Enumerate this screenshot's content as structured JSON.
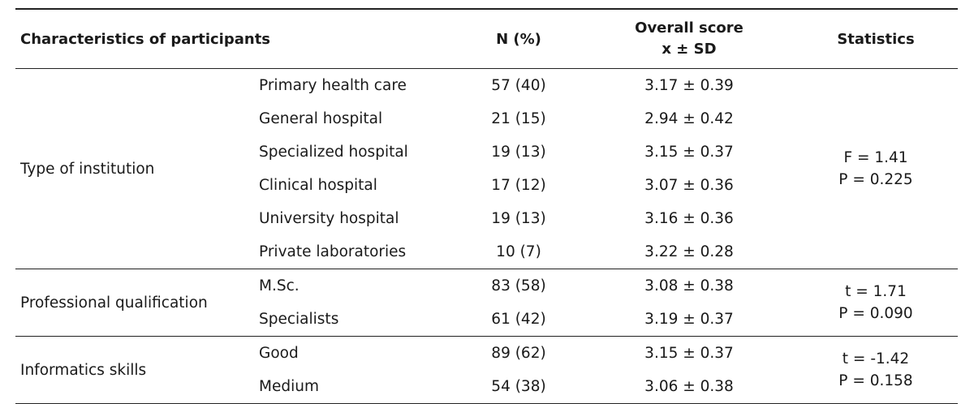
{
  "header": {
    "characteristics": "Characteristics of participants",
    "n_percent": "N (%)",
    "overall_score_line1": "Overall score",
    "overall_score_line2": "x ± SD",
    "statistics": "Statistics"
  },
  "groups": [
    {
      "label": "Type of institution",
      "stat_line1": "F = 1.41",
      "stat_line2": "P = 0.225",
      "rows": [
        {
          "sub": "Primary health care",
          "n": "57 (40)",
          "score": "3.17 ± 0.39"
        },
        {
          "sub": "General hospital",
          "n": "21 (15)",
          "score": "2.94 ± 0.42"
        },
        {
          "sub": "Specialized hospital",
          "n": "19 (13)",
          "score": "3.15 ± 0.37"
        },
        {
          "sub": "Clinical hospital",
          "n": "17 (12)",
          "score": "3.07 ± 0.36"
        },
        {
          "sub": "University hospital",
          "n": "19 (13)",
          "score": "3.16 ± 0.36"
        },
        {
          "sub": "Private laboratories",
          "n": "10 (7)",
          "score": "3.22 ± 0.28"
        }
      ]
    },
    {
      "label": "Professional qualification",
      "stat_line1": "t = 1.71",
      "stat_line2": "P = 0.090",
      "rows": [
        {
          "sub": "M.Sc.",
          "n": "83 (58)",
          "score": "3.08 ± 0.38"
        },
        {
          "sub": "Specialists",
          "n": "61 (42)",
          "score": "3.19 ± 0.37"
        }
      ]
    },
    {
      "label": "Informatics skills",
      "stat_line1": "t = -1.42",
      "stat_line2": "P = 0.158",
      "rows": [
        {
          "sub": "Good",
          "n": "89 (62)",
          "score": "3.15 ± 0.37"
        },
        {
          "sub": "Medium",
          "n": "54 (38)",
          "score": "3.06 ± 0.38"
        }
      ]
    }
  ]
}
